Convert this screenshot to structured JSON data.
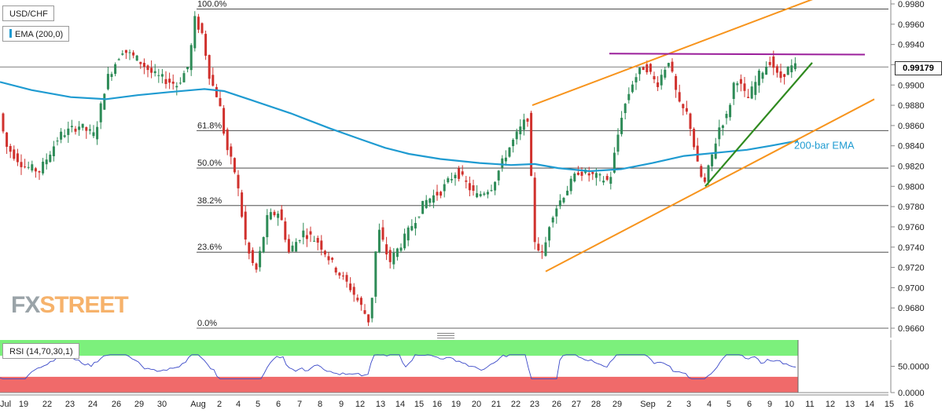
{
  "chart_data": {
    "type": "candlestick",
    "symbol": "USD/CHF",
    "indicator_label": "EMA (200,0)",
    "last_price": "0.99179",
    "price_ticks": [
      "0.9660",
      "0.9680",
      "0.9700",
      "0.9720",
      "0.9740",
      "0.9760",
      "0.9780",
      "0.9800",
      "0.9820",
      "0.9840",
      "0.9860",
      "0.9880",
      "0.9900",
      "0.9920",
      "0.9940",
      "0.9960",
      "0.9980"
    ],
    "price_range": [
      0.9655,
      0.9985
    ],
    "x_ticks": [
      "Jul",
      "19",
      "22",
      "23",
      "24",
      "26",
      "29",
      "30",
      "Aug",
      "2",
      "4",
      "5",
      "6",
      "7",
      "8",
      "9",
      "12",
      "13",
      "14",
      "15",
      "16",
      "19",
      "20",
      "21",
      "22",
      "23",
      "26",
      "27",
      "28",
      "29",
      "Sep",
      "2",
      "3",
      "4",
      "5",
      "6",
      "9",
      "10",
      "11",
      "12",
      "13",
      "14",
      "15",
      "16"
    ],
    "fibonacci_levels": [
      {
        "label": "100.0%",
        "price": 0.9975
      },
      {
        "label": "61.8%",
        "price": 0.9855
      },
      {
        "label": "50.0%",
        "price": 0.9818
      },
      {
        "label": "38.2%",
        "price": 0.9781
      },
      {
        "label": "23.6%",
        "price": 0.9735
      },
      {
        "label": "0.0%",
        "price": 0.966
      }
    ],
    "annotation": "200-bar EMA",
    "horizontal_resistance": 0.993,
    "rsi": {
      "label": "RSI (14,70,30,1)",
      "ticks": [
        "50.0000",
        "0.0000"
      ],
      "overbought": 70,
      "oversold": 30
    },
    "colors": {
      "up": "#2e8b57",
      "down": "#d0312d",
      "ema": "#1f9bd1",
      "channel": "#f7941d",
      "support": "#2f8a1f",
      "resistance": "#9b1f9b",
      "rsi_overbought_zone": "#7cf07c",
      "rsi_oversold_zone": "#f06a6a",
      "rsi_line": "#3a48c8"
    },
    "source_mark": {
      "fx": "FX",
      "street": "STREET"
    }
  }
}
